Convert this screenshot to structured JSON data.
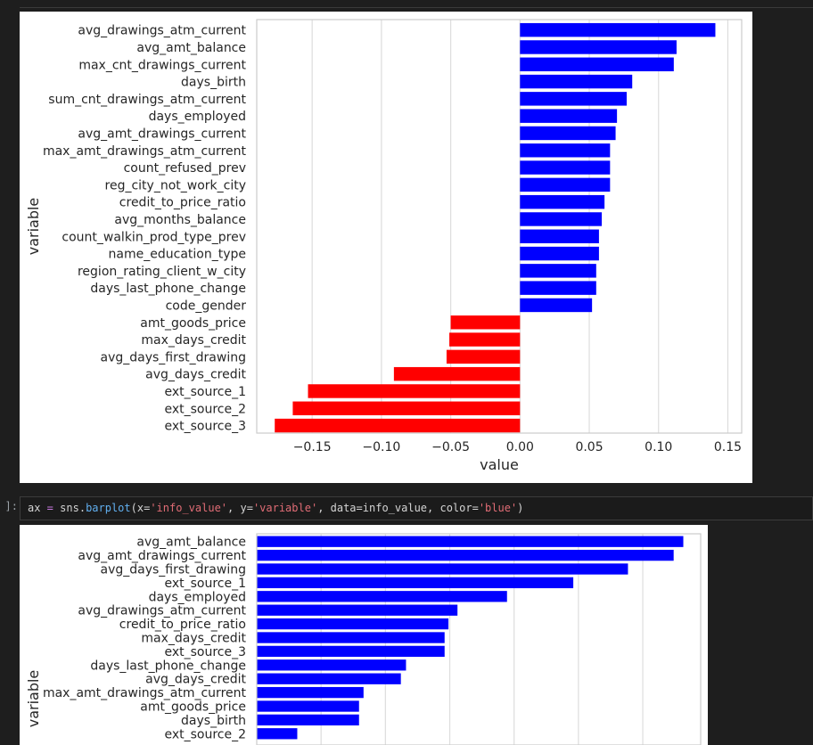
{
  "cell": {
    "prompt": "]:",
    "code": {
      "t1": "ax",
      "t2": " = ",
      "t3": "sns",
      "t4": ".",
      "t5": "barplot",
      "t6": "(x=",
      "t7": "'info_value'",
      "t8": ", y=",
      "t9": "'variable'",
      "t10": ", data=",
      "t11": "info_value",
      "t12": ", color=",
      "t13": "'blue'",
      "t14": ")"
    }
  },
  "chart_data": [
    {
      "type": "bar",
      "orientation": "horizontal",
      "xlabel": "value",
      "ylabel": "variable",
      "xlim": [
        -0.19,
        0.16
      ],
      "xticks": [
        "−0.15",
        "−0.10",
        "−0.05",
        "0.00",
        "0.05",
        "0.10",
        "0.15"
      ],
      "xtick_values": [
        -0.15,
        -0.1,
        -0.05,
        0.0,
        0.05,
        0.1,
        0.15
      ],
      "grid": true,
      "colors": {
        "positive": "#0000ff",
        "negative": "#ff0000"
      },
      "categories": [
        "avg_drawings_atm_current",
        "avg_amt_balance",
        "max_cnt_drawings_current",
        "days_birth",
        "sum_cnt_drawings_atm_current",
        "days_employed",
        "avg_amt_drawings_current",
        "max_amt_drawings_atm_current",
        "count_refused_prev",
        "reg_city_not_work_city",
        "credit_to_price_ratio",
        "avg_months_balance",
        "count_walkin_prod_type_prev",
        "name_education_type",
        "region_rating_client_w_city",
        "days_last_phone_change",
        "code_gender",
        "amt_goods_price",
        "max_days_credit",
        "avg_days_first_drawing",
        "avg_days_credit",
        "ext_source_1",
        "ext_source_2",
        "ext_source_3"
      ],
      "values": [
        0.141,
        0.113,
        0.111,
        0.081,
        0.077,
        0.07,
        0.069,
        0.065,
        0.065,
        0.065,
        0.061,
        0.059,
        0.057,
        0.057,
        0.055,
        0.055,
        0.052,
        -0.05,
        -0.051,
        -0.053,
        -0.091,
        -0.153,
        -0.164,
        -0.177
      ]
    },
    {
      "type": "bar",
      "orientation": "horizontal",
      "ylabel": "variable",
      "xlim": [
        0,
        0.69
      ],
      "grid": true,
      "color": "#0000ff",
      "categories": [
        "avg_amt_balance",
        "avg_amt_drawings_current",
        "avg_days_first_drawing",
        "ext_source_1",
        "days_employed",
        "avg_drawings_atm_current",
        "credit_to_price_ratio",
        "max_days_credit",
        "ext_source_3",
        "days_last_phone_change",
        "avg_days_credit",
        "max_amt_drawings_atm_current",
        "amt_goods_price",
        "days_birth",
        "ext_source_2"
      ],
      "values": [
        0.663,
        0.648,
        0.577,
        0.492,
        0.389,
        0.312,
        0.298,
        0.292,
        0.292,
        0.232,
        0.224,
        0.166,
        0.159,
        0.159,
        0.063
      ]
    }
  ]
}
